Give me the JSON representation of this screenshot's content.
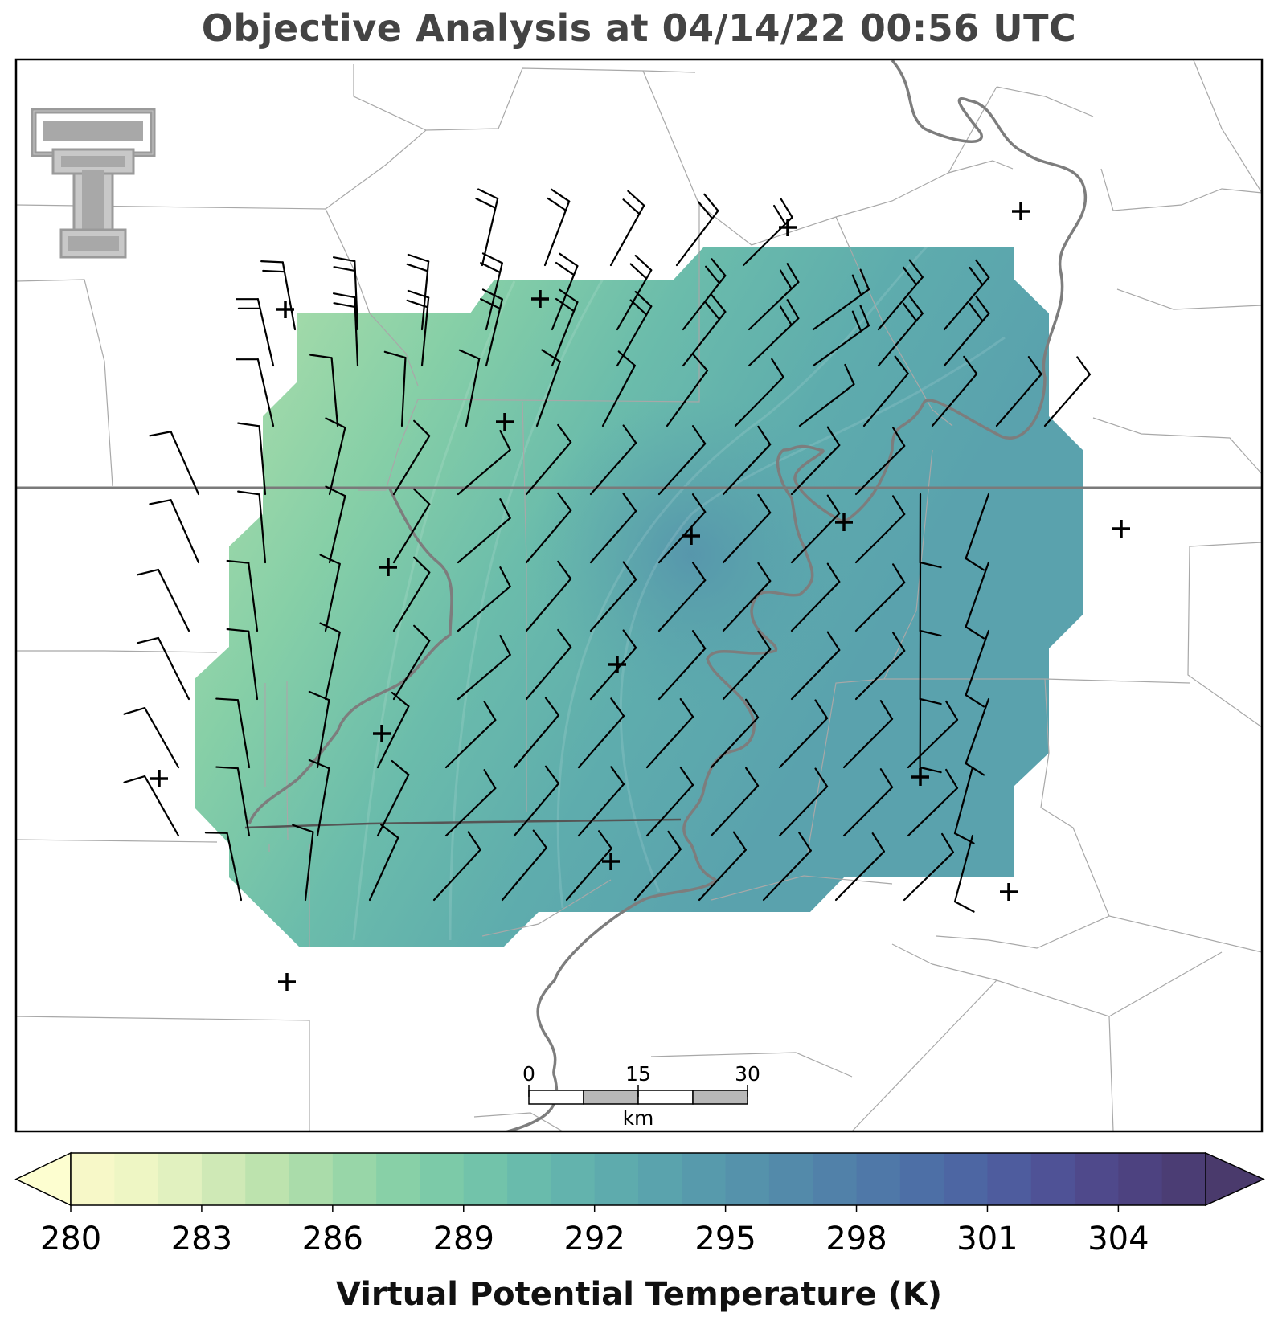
{
  "title": "Objective Analysis at 04/14/22 00:56 UTC",
  "colorbar": {
    "label": "Virtual Potential Temperature (K)",
    "ticks": [
      "280",
      "283",
      "286",
      "289",
      "292",
      "295",
      "298",
      "301",
      "304"
    ],
    "min": 280,
    "max": 306,
    "step": 1,
    "colormap": "crest",
    "colors": [
      "#f7f8c8",
      "#eef6c4",
      "#e1f1bf",
      "#cfe9b6",
      "#bde3ae",
      "#aadcaa",
      "#98d6a8",
      "#88d0a7",
      "#7ccaa8",
      "#72c3aa",
      "#69bbac",
      "#63b3ad",
      "#5eabad",
      "#5aa3ad",
      "#579aac",
      "#5592ab",
      "#538aaa",
      "#5181a9",
      "#4f78a8",
      "#4d6fa6",
      "#4d66a3",
      "#4e5c9e",
      "#4f5296",
      "#4f498b",
      "#4d4280",
      "#4b3d74"
    ]
  },
  "scale_bar": {
    "ticks": [
      "0",
      "15",
      "30"
    ],
    "unit": "km"
  },
  "logo": "texas-tech-double-t-logo",
  "station_marker": "+",
  "analysis": {
    "field": "Virtual Potential Temperature",
    "units": "K",
    "approx_range": [
      287,
      295
    ]
  }
}
